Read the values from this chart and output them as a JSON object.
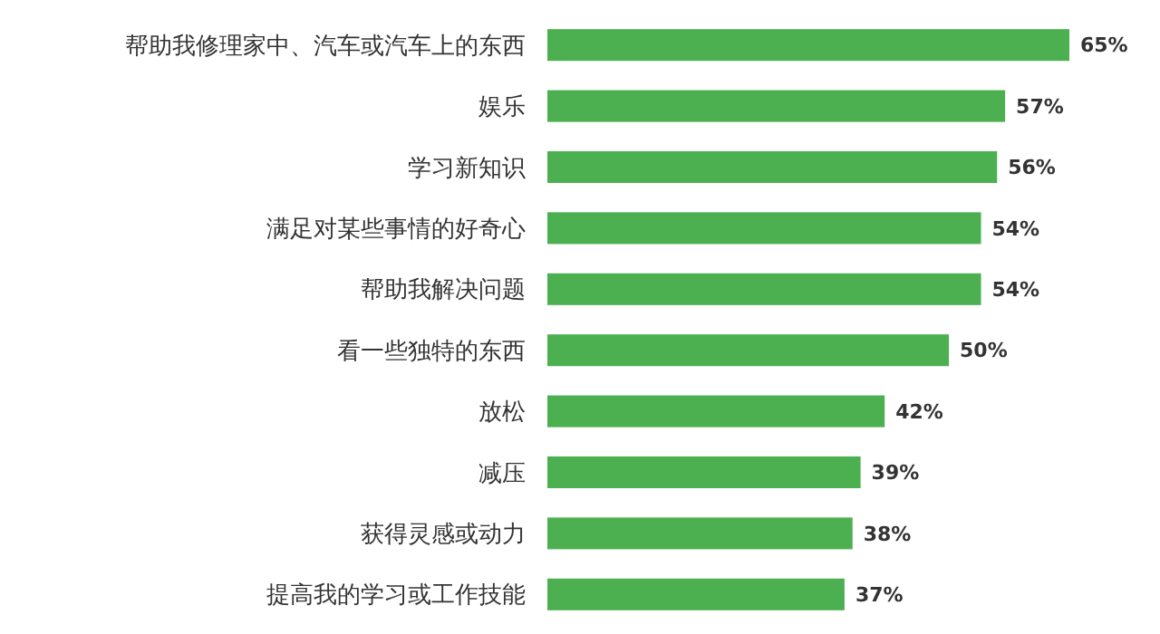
{
  "chart_data": {
    "type": "bar",
    "orientation": "horizontal",
    "categories": [
      "帮助我修理家中、汽车或汽车上的东西",
      "娱乐",
      "学习新知识",
      "满足对某些事情的好奇心",
      "帮助我解决问题",
      "看一些独特的东西",
      "放松",
      "减压",
      "获得灵感或动力",
      "提高我的学习或工作技能"
    ],
    "values": [
      65,
      57,
      56,
      54,
      54,
      50,
      42,
      39,
      38,
      37
    ],
    "value_labels": [
      "65%",
      "57%",
      "56%",
      "54%",
      "54%",
      "50%",
      "42%",
      "39%",
      "38%",
      "37%"
    ],
    "color": "#4cb050"
  }
}
